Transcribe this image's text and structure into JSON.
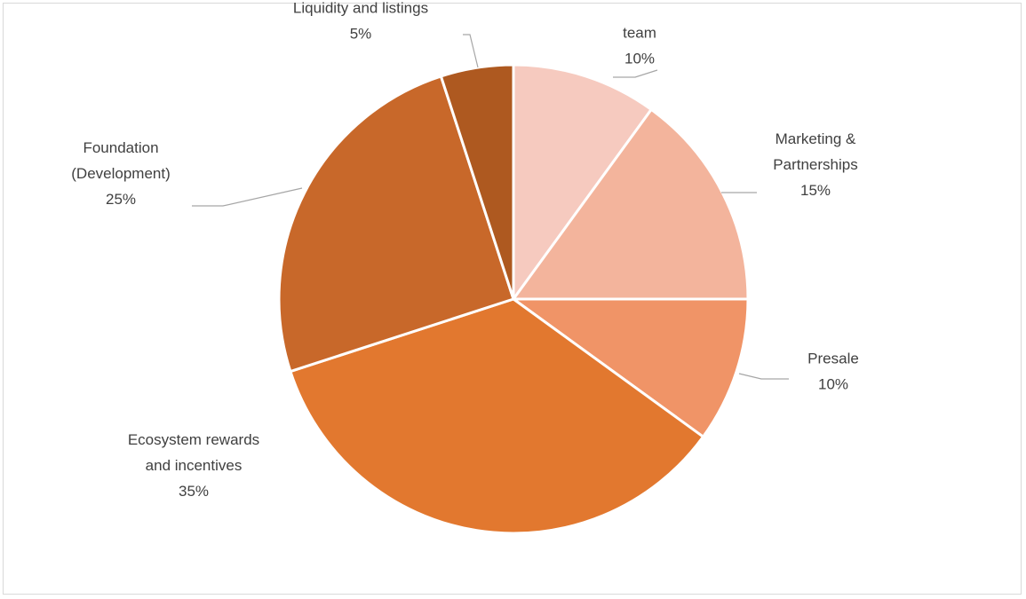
{
  "chart_data": {
    "type": "pie",
    "title": "",
    "start_angle_deg": 0,
    "direction": "clockwise",
    "slice_border_color": "#ffffff",
    "leader_line_color": "#a6a6a6",
    "label_color": "#404040",
    "grid": false,
    "legend": "none",
    "slices": [
      {
        "label_lines": [
          "team"
        ],
        "percent_label": "10%",
        "value": 10,
        "color": "#f6cabf"
      },
      {
        "label_lines": [
          "Marketing &",
          "Partnerships"
        ],
        "percent_label": "15%",
        "value": 15,
        "color": "#f3b49c"
      },
      {
        "label_lines": [
          "Presale"
        ],
        "percent_label": "10%",
        "value": 10,
        "color": "#f09467"
      },
      {
        "label_lines": [
          "Ecosystem rewards",
          "and incentives"
        ],
        "percent_label": "35%",
        "value": 35,
        "color": "#e2782f"
      },
      {
        "label_lines": [
          "Foundation",
          "(Development)"
        ],
        "percent_label": "25%",
        "value": 25,
        "color": "#c8682a"
      },
      {
        "label_lines": [
          "Liquidity and listings"
        ],
        "percent_label": "5%",
        "value": 5,
        "color": "#ae5920"
      }
    ]
  }
}
